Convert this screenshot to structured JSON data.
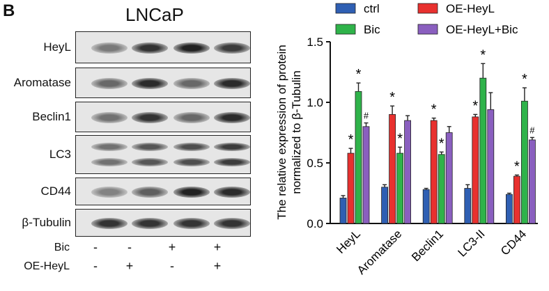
{
  "panel_label": "B",
  "cell_line": "LNCaP",
  "blots": [
    {
      "label": "HeyL",
      "bands": [
        0.45,
        0.85,
        0.95,
        0.8
      ],
      "rows": 1
    },
    {
      "label": "Aromatase",
      "bands": [
        0.55,
        0.9,
        0.55,
        0.9
      ],
      "rows": 1
    },
    {
      "label": "Beclin1",
      "bands": [
        0.5,
        0.85,
        0.55,
        0.9
      ],
      "rows": 1
    },
    {
      "label": "LC3",
      "bands": [
        0.5,
        0.65,
        0.7,
        0.8
      ],
      "rows": 2
    },
    {
      "label": "CD44",
      "bands": [
        0.4,
        0.6,
        0.95,
        0.9
      ],
      "rows": 1
    },
    {
      "label": "β-Tubulin",
      "bands": [
        0.85,
        0.85,
        0.85,
        0.85
      ],
      "rows": 1
    }
  ],
  "conditions": [
    {
      "label": "Bic",
      "marks": [
        "-",
        "-",
        "+",
        "+"
      ]
    },
    {
      "label": "OE-HeyL",
      "marks": [
        "-",
        "+",
        "-",
        "+"
      ]
    }
  ],
  "chart_data": {
    "type": "bar",
    "categories": [
      "HeyL",
      "Aromatase",
      "Beclin1",
      "LC3-II",
      "CD44"
    ],
    "ylabel": "The relative expression of protein normalized to β-Tubulin",
    "ylim": [
      0,
      1.5
    ],
    "yticks": [
      "0.0",
      "0.5",
      "1.0",
      "1.5"
    ],
    "legend_position": "top",
    "series": [
      {
        "name": "ctrl",
        "color": "#2f5fb3",
        "values": [
          0.21,
          0.3,
          0.28,
          0.29,
          0.24
        ],
        "errors": [
          0.02,
          0.02,
          0.01,
          0.03,
          0.01
        ],
        "marks": [
          "",
          "",
          "",
          "",
          ""
        ]
      },
      {
        "name": "OE-HeyL",
        "color": "#e8312f",
        "values": [
          0.58,
          0.9,
          0.85,
          0.88,
          0.39
        ],
        "errors": [
          0.04,
          0.07,
          0.02,
          0.02,
          0.01
        ],
        "marks": [
          "*",
          "*",
          "*",
          "*",
          "*"
        ]
      },
      {
        "name": "Bic",
        "color": "#2fb34a",
        "values": [
          1.09,
          0.58,
          0.57,
          1.2,
          1.01
        ],
        "errors": [
          0.07,
          0.05,
          0.02,
          0.12,
          0.11
        ],
        "marks": [
          "*",
          "*",
          "*",
          "*",
          "*"
        ]
      },
      {
        "name": "OE-HeyL+Bic",
        "color": "#8a5fbf",
        "values": [
          0.8,
          0.85,
          0.75,
          0.94,
          0.69
        ],
        "errors": [
          0.03,
          0.04,
          0.05,
          0.14,
          0.02
        ],
        "marks": [
          "#",
          "",
          "",
          "",
          "#"
        ]
      }
    ],
    "legend_order": [
      0,
      1,
      2,
      3
    ]
  }
}
